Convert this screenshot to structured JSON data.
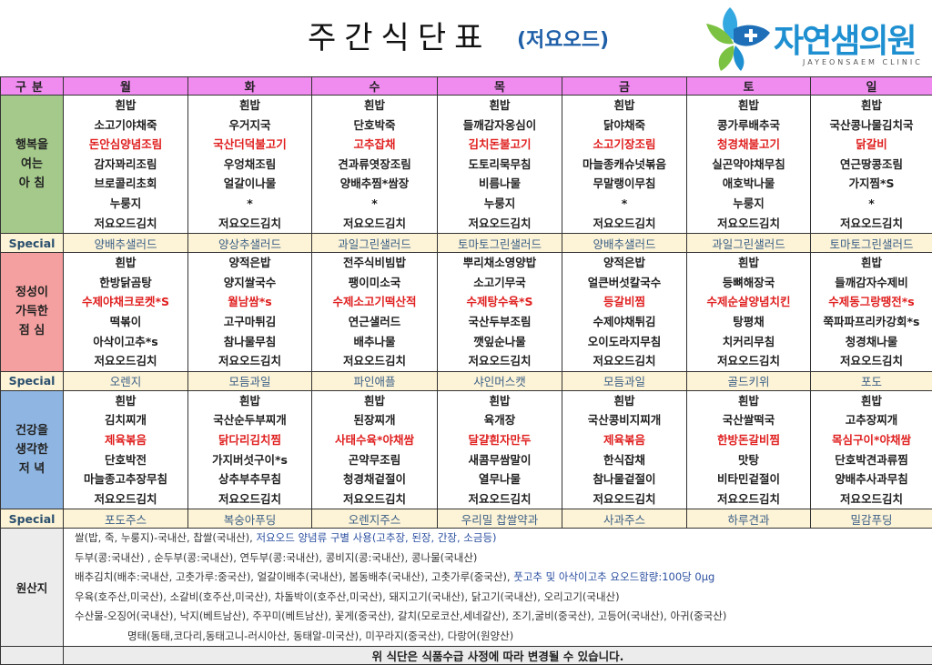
{
  "header": {
    "title": "주간식단표",
    "subtitle": "(저요오드)",
    "logo_name": "자연샘의원",
    "logo_sub": "JAYEONSAEM CLINIC"
  },
  "table": {
    "corner_label": "구분",
    "days": [
      "월",
      "화",
      "수",
      "목",
      "금",
      "토",
      "일"
    ],
    "special_label": "Special",
    "meals": [
      {
        "label": [
          "행복을",
          "여는",
          "아  침"
        ],
        "label_color": "#a4c98a",
        "rows": [
          [
            "흰밥",
            "흰밥",
            "흰밥",
            "흰밥",
            "흰밥",
            "흰밥",
            "흰밥"
          ],
          [
            "소고기야채죽",
            "우거지국",
            "단호박죽",
            "들깨감자옹심이",
            "닭야채죽",
            "콩가루배추국",
            "국산콩나물김치국"
          ],
          [
            "돈안심양념조림",
            "국산더덕불고기",
            "고추잡채",
            "김치돈불고기",
            "소고기장조림",
            "청경채불고기",
            "닭갈비"
          ],
          [
            "감자꽈리조림",
            "우엉채조림",
            "견과류엿장조림",
            "도토리묵무침",
            "마늘종캐슈넛볶음",
            "실곤약야채무침",
            "연근땅콩조림"
          ],
          [
            "브로콜리초회",
            "얼갈이나물",
            "양배추찜*쌈장",
            "비름나물",
            "무말랭이무침",
            "애호박나물",
            "가지찜*S"
          ],
          [
            "누룽지",
            "*",
            "*",
            "누룽지",
            "*",
            "누룽지",
            "*"
          ],
          [
            "저요오드김치",
            "저요오드김치",
            "저요오드김치",
            "저요오드김치",
            "저요오드김치",
            "저요오드김치",
            "저요오드김치"
          ]
        ],
        "red_row": 2,
        "special": [
          "양배추샐러드",
          "양상추샐러드",
          "과일그린샐러드",
          "토마토그린샐러드",
          "양배추샐러드",
          "과일그린샐러드",
          "토마토그린샐러드"
        ]
      },
      {
        "label": [
          "정성이",
          "가득한",
          "점  심"
        ],
        "label_color": "#f5a0a0",
        "rows": [
          [
            "흰밥",
            "양적은밥",
            "전주식비빔밥",
            "뿌리채소영양밥",
            "양적은밥",
            "흰밥",
            "흰밥"
          ],
          [
            "한방닭곰탕",
            "양지쌀국수",
            "팽이미소국",
            "소고기무국",
            "얼큰버섯칼국수",
            "등뼈해장국",
            "들깨감자수제비"
          ],
          [
            "수제야채크로켓*S",
            "월남쌈*s",
            "수제소고기떡산적",
            "수제탕수육*S",
            "등갈비찜",
            "수제순살양념치킨",
            "수제동그랑땡전*s"
          ],
          [
            "떡볶이",
            "고구마튀김",
            "연근샐러드",
            "국산두부조림",
            "수제야채튀김",
            "탕평채",
            "쭉파파프리카강회*s"
          ],
          [
            "아삭이고추*s",
            "참나물무침",
            "배추나물",
            "깻잎순나물",
            "오이도라지무침",
            "치커리무침",
            "청경채나물"
          ],
          [
            "저요오드김치",
            "저요오드김치",
            "저요오드김치",
            "저요오드김치",
            "저요오드김치",
            "저요오드김치",
            "저요오드김치"
          ]
        ],
        "red_row": 2,
        "special": [
          "오렌지",
          "모듬과일",
          "파인애플",
          "샤인머스캣",
          "모듬과일",
          "골드키위",
          "포도"
        ]
      },
      {
        "label": [
          "건강을",
          "생각한",
          "저  녁"
        ],
        "label_color": "#8fb6e2",
        "rows": [
          [
            "흰밥",
            "흰밥",
            "흰밥",
            "흰밥",
            "흰밥",
            "흰밥",
            "흰밥"
          ],
          [
            "김치찌개",
            "국산순두부찌개",
            "된장찌개",
            "육개장",
            "국산콩비지찌개",
            "국산쌀떡국",
            "고추장찌개"
          ],
          [
            "제육볶음",
            "닭다리김치찜",
            "사태수육*야채쌈",
            "달걀흰자만두",
            "제육볶음",
            "한방돈갈비찜",
            "목심구이*야채쌈"
          ],
          [
            "단호박전",
            "가지버섯구이*s",
            "곤약무조림",
            "새콤무쌈말이",
            "한식잡채",
            "맛탕",
            "단호박견과류찜"
          ],
          [
            "마늘종고추장무침",
            "상추부추무침",
            "청경채겉절이",
            "열무나물",
            "참나물겉절이",
            "비타민겉절이",
            "양배추사과무침"
          ],
          [
            "저요오드김치",
            "저요오드김치",
            "저요오드김치",
            "저요오드김치",
            "저요오드김치",
            "저요오드김치",
            "저요오드김치"
          ]
        ],
        "red_row": 2,
        "special": [
          "포도주스",
          "복숭아푸딩",
          "오렌지주스",
          "우리밀 찹쌀약과",
          "사과주스",
          "하루견과",
          "밀감푸딩"
        ]
      }
    ]
  },
  "origin": {
    "label": "원산지",
    "lines": [
      {
        "text": "쌀(밥, 죽, 누룽지)-국내산, 찹쌀(국내산), ",
        "note": "저요오드 양념류 구별 사용(고추장, 된장, 간장, 소금등)"
      },
      {
        "text": "두부(콩:국내산) , 순두부(콩:국내산), 연두부(콩:국내산), 콩비지(콩:국내산), 콩나물(국내산)",
        "note": ""
      },
      {
        "text": "배추김치(배추:국내산, 고춧가루:중국산), 얼갈이배추(국내산), 봄동배추(국내산), 고춧가루(중국산), ",
        "note": "풋고추 및 아삭이고추 요오드함량:100당 0μg"
      },
      {
        "text": "우육(호주산,미국산), 소갈비(호주산,미국산), 차돌박이(호주산,미국산), 돼지고기(국내산), 닭고기(국내산), 오리고기(국내산)",
        "note": ""
      },
      {
        "text": "수산물-오징어(국내산), 낙지(베트남산), 주꾸미(베트남산), 꽃게(중국산), 갈치(모로코산,세네갈산), 조기,굴비(중국산), 고등어(국내산), 아귀(중국산)",
        "note": ""
      },
      {
        "text": "명태(동태,코다리,동태고니-러시아산, 동태알-미국산), 미꾸라지(중국산), 다랑어(원양산)",
        "note": ""
      }
    ]
  },
  "footer": {
    "notice": "위 식단은 식품수급 사정에 따라 변경될 수 있습니다."
  },
  "colors": {
    "header_pink": "#f08cf0",
    "special_bg": "#fdf3d6",
    "accent_red": "#e02020",
    "accent_blue": "#2b4fa0"
  }
}
